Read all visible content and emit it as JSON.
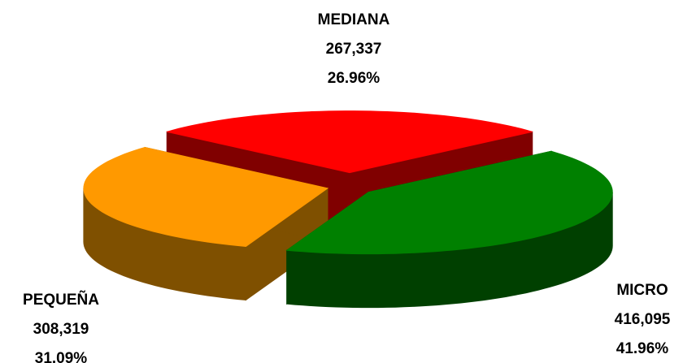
{
  "chart_data": {
    "type": "pie3d",
    "categories": [
      "MEDIANA",
      "MICRO",
      "PEQUEÑA"
    ],
    "values": [
      267337,
      416095,
      308319
    ],
    "value_labels": [
      "267,337",
      "416,095",
      "308,319"
    ],
    "percent_labels": [
      "26.96%",
      "41.96%",
      "31.09%"
    ],
    "colors": [
      "#ff0000",
      "#008000",
      "#ff9900"
    ],
    "side_colors": [
      "#800000",
      "#004000",
      "#7f5000"
    ]
  }
}
